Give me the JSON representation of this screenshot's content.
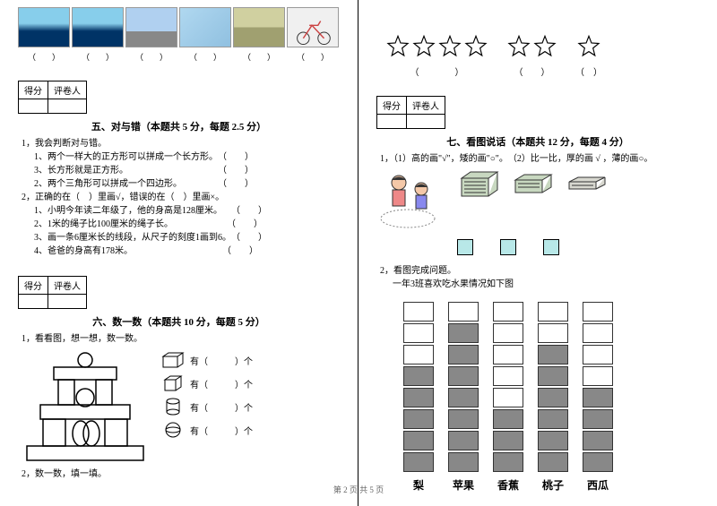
{
  "score_labels": {
    "score": "得分",
    "grader": "评卷人"
  },
  "section5": {
    "title": "五、对与错（本题共 5 分，每题 2.5 分）",
    "q1": "1，我会判断对与错。",
    "q1_1": "1、两个一样大的正方形可以拼成一个长方形。　（　　）",
    "q1_2": "3、长方形就是正方形。　　　　　　　　　　　（　　）",
    "q1_3": "2、两个三角形可以拼成一个四边形。　　　　　（　　）",
    "q2": "2，正确的在（　）里画√，错误的在（　）里画×。",
    "q2_1": "1、小明今年读二年级了，他的身高是128厘米。　　（　　）",
    "q2_2": "2、1米的绳子比100厘米的绳子长。　　　　　　　（　　）",
    "q2_3": "3、画一条6厘米长的线段，从尺子的刻度1画到6。　（　　）",
    "q2_4": "4、爸爸的身高有178米。　　　　　　　　　　　（　　）"
  },
  "section6": {
    "title": "六、数一数（本题共 10 分，每题 5 分）",
    "q1": "1，看看图，想一想，数一数。",
    "q2": "2，数一数，填一填。",
    "count_label": "有（　　　）个"
  },
  "section7": {
    "title": "七、看图说话（本题共 12 分，每题 4 分）",
    "q1": "1，（1）高的画\"√\"，矮的画\"○\"。　（2）比一比，厚的画 √ ，薄的画○。",
    "q2": "2，看图完成问题。",
    "q2_sub": "一年3班喜欢吃水果情况如下图"
  },
  "stars": {
    "paren": "（　　　　）",
    "paren2": "（　　）",
    "paren3": "（　）"
  },
  "images": {
    "parens": [
      "（　　）",
      "（　　）",
      "（　　）",
      "（　　）",
      "（　　）",
      "（　　）"
    ]
  },
  "chart": {
    "labels": [
      "梨",
      "苹果",
      "香蕉",
      "桃子",
      "西瓜"
    ],
    "filled": [
      5,
      7,
      3,
      6,
      4
    ],
    "total_rows": 8,
    "empty_color": "#ffffff",
    "filled_color": "#888888"
  },
  "footer": "第 2 页 共 5 页"
}
